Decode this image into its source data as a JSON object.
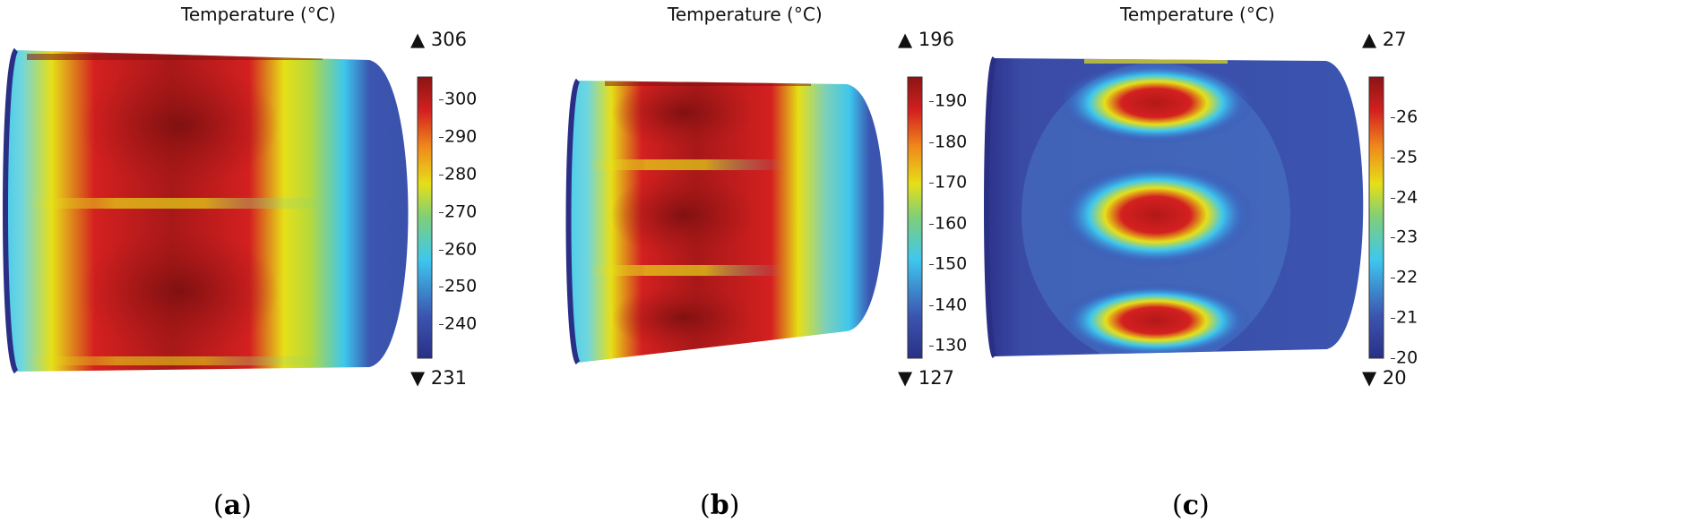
{
  "chart_data": [
    {
      "type": "heatmap",
      "panel_label": "a",
      "title": "Temperature (°C)",
      "colorbar": {
        "min": 231,
        "max": 306,
        "ticks": [
          240,
          250,
          260,
          270,
          280,
          290,
          300
        ],
        "max_label": "306",
        "min_label": "231"
      },
      "hot_regions": 2,
      "colormap": "rainbow"
    },
    {
      "type": "heatmap",
      "panel_label": "b",
      "title": "Temperature (°C)",
      "colorbar": {
        "min": 127,
        "max": 196,
        "ticks": [
          130,
          140,
          150,
          160,
          170,
          180,
          190
        ],
        "max_label": "196",
        "min_label": "127"
      },
      "hot_regions": 3,
      "colormap": "rainbow"
    },
    {
      "type": "heatmap",
      "panel_label": "c",
      "title": "Temperature (°C)",
      "colorbar": {
        "min": 20,
        "max": 27,
        "ticks": [
          20,
          21,
          22,
          23,
          24,
          25,
          26
        ],
        "max_label": "27",
        "min_label": "20"
      },
      "hot_regions": 3,
      "colormap": "rainbow"
    }
  ],
  "colors": {
    "deep_red": "#8b1414",
    "red": "#d42020",
    "yellow": "#e6df18",
    "cyan": "#3ec7ee",
    "blue": "#3b55b0",
    "navy": "#2a2f86"
  },
  "symbols": {
    "max_marker": "▲",
    "min_marker": "▼"
  }
}
